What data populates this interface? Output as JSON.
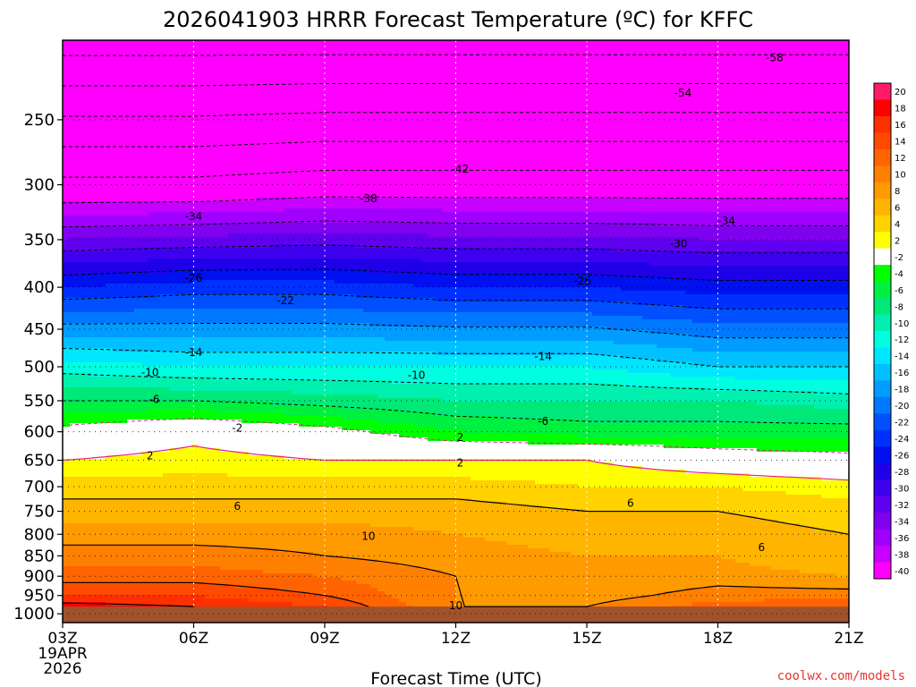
{
  "chart_data": {
    "type": "heatmap",
    "title": "2026041903 HRRR Forecast Temperature (ºC) for KFFC",
    "xlabel": "Forecast Time (UTC)",
    "ylabel": "",
    "x_hours": [
      0,
      3,
      6,
      9,
      12,
      15,
      18
    ],
    "x_ticks": [
      "03Z",
      "06Z",
      "09Z",
      "12Z",
      "15Z",
      "18Z",
      "21Z"
    ],
    "x_start_date": [
      "19APR",
      "2026"
    ],
    "xlim": [
      0,
      18
    ],
    "y_ticks": [
      250,
      300,
      350,
      400,
      450,
      500,
      550,
      600,
      650,
      700,
      750,
      800,
      850,
      900,
      950,
      1000
    ],
    "ylim_hPa": [
      200,
      1025
    ],
    "y_axis": "pressure",
    "surface_pressure_hPa": 980,
    "colorbar": {
      "levels": [
        20,
        18,
        16,
        14,
        12,
        10,
        8,
        6,
        4,
        2,
        -2,
        -4,
        -6,
        -8,
        -10,
        -12,
        -14,
        -16,
        -18,
        -20,
        -22,
        -24,
        -26,
        -28,
        -30,
        -32,
        -34,
        -36,
        -38,
        -40
      ],
      "colors": [
        "#ff1a6a",
        "#ff0000",
        "#ff3000",
        "#ff4a00",
        "#ff6400",
        "#ff8000",
        "#ff9a00",
        "#ffb400",
        "#ffd200",
        "#ffff00",
        "#ffffff",
        "#00ff00",
        "#00f040",
        "#00e878",
        "#00f0b0",
        "#00ffe0",
        "#00e6ff",
        "#00c0ff",
        "#009cff",
        "#0078ff",
        "#0050ff",
        "#0030ff",
        "#0010f0",
        "#2000e8",
        "#4000f0",
        "#6000f0",
        "#8000f0",
        "#a000ff",
        "#c800ff",
        "#ff00ff"
      ]
    },
    "temperature_profiles": [
      {
        "hour": 0,
        "p_hPa": [
          200,
          300,
          400,
          500,
          550,
          600,
          650,
          700,
          750,
          800,
          850,
          900,
          950,
          980
        ],
        "t_C": [
          -60,
          -41,
          -24,
          -11,
          -6,
          -1,
          2,
          5,
          7,
          9,
          11,
          13,
          16,
          19
        ]
      },
      {
        "hour": 3,
        "p_hPa": [
          200,
          300,
          400,
          500,
          550,
          600,
          650,
          700,
          750,
          800,
          850,
          900,
          950,
          980
        ],
        "t_C": [
          -60,
          -41,
          -23,
          -12,
          -6,
          1,
          3,
          5,
          7,
          9,
          11,
          13,
          16,
          18
        ]
      },
      {
        "hour": 6,
        "p_hPa": [
          200,
          300,
          400,
          500,
          550,
          600,
          650,
          700,
          750,
          800,
          850,
          900,
          950,
          980
        ],
        "t_C": [
          -60,
          -40,
          -23,
          -12,
          -7,
          -1,
          2,
          5,
          7,
          9,
          10,
          12,
          14,
          16
        ]
      },
      {
        "hour": 9,
        "p_hPa": [
          200,
          300,
          400,
          500,
          550,
          600,
          650,
          700,
          750,
          800,
          850,
          900,
          950,
          980
        ],
        "t_C": [
          -60,
          -40,
          -24,
          -12,
          -8,
          -4,
          2,
          5,
          7,
          8,
          9,
          10,
          10,
          10
        ]
      },
      {
        "hour": 12,
        "p_hPa": [
          200,
          300,
          400,
          500,
          550,
          600,
          650,
          700,
          750,
          800,
          850,
          900,
          950,
          980
        ],
        "t_C": [
          -60,
          -40,
          -24,
          -12,
          -8,
          -5,
          2,
          4,
          6,
          7,
          8,
          8,
          9,
          10
        ]
      },
      {
        "hour": 15,
        "p_hPa": [
          200,
          300,
          400,
          500,
          550,
          600,
          650,
          700,
          750,
          800,
          850,
          900,
          950,
          980
        ],
        "t_C": [
          -60,
          -40,
          -25,
          -14,
          -8,
          -5,
          0,
          4,
          6,
          7,
          8,
          9,
          11,
          13
        ]
      },
      {
        "hour": 18,
        "p_hPa": [
          200,
          300,
          400,
          500,
          550,
          600,
          650,
          700,
          750,
          800,
          850,
          900,
          950,
          980
        ],
        "t_C": [
          -60,
          -40,
          -25,
          -14,
          -9,
          -5,
          -1,
          3,
          5,
          6,
          6,
          8,
          11,
          14
        ]
      }
    ],
    "contour_levels": [
      -58,
      -54,
      -50,
      -46,
      -42,
      -38,
      -34,
      -30,
      -26,
      -22,
      -18,
      -14,
      -10,
      -6,
      -2,
      2,
      6,
      10,
      14,
      18
    ],
    "contour_labels": [
      {
        "text": "-58",
        "hour": 16.3,
        "p": 210
      },
      {
        "text": "-54",
        "hour": 14.2,
        "p": 232
      },
      {
        "text": "-42",
        "hour": 9.1,
        "p": 287
      },
      {
        "text": "-38",
        "hour": 7.0,
        "p": 312
      },
      {
        "text": "-34",
        "hour": 3.0,
        "p": 328
      },
      {
        "text": "-34",
        "hour": 15.2,
        "p": 332
      },
      {
        "text": "-30",
        "hour": 14.1,
        "p": 354
      },
      {
        "text": "-26",
        "hour": 3.0,
        "p": 390
      },
      {
        "text": "-26",
        "hour": 11.9,
        "p": 393
      },
      {
        "text": "-22",
        "hour": 5.1,
        "p": 415
      },
      {
        "text": "-14",
        "hour": 3.0,
        "p": 480
      },
      {
        "text": "-14",
        "hour": 11.0,
        "p": 486
      },
      {
        "text": "-10",
        "hour": 2.0,
        "p": 508
      },
      {
        "text": "-10",
        "hour": 8.1,
        "p": 512
      },
      {
        "text": "-6",
        "hour": 2.1,
        "p": 548
      },
      {
        "text": "-6",
        "hour": 11.0,
        "p": 583
      },
      {
        "text": "-2",
        "hour": 4.0,
        "p": 594
      },
      {
        "text": "2",
        "hour": 9.1,
        "p": 610
      },
      {
        "text": "2",
        "hour": 2.0,
        "p": 642
      },
      {
        "text": "2",
        "hour": 9.1,
        "p": 655
      },
      {
        "text": "6",
        "hour": 4.0,
        "p": 740
      },
      {
        "text": "6",
        "hour": 13.0,
        "p": 733
      },
      {
        "text": "6",
        "hour": 16.0,
        "p": 830
      },
      {
        "text": "10",
        "hour": 7.0,
        "p": 805
      },
      {
        "text": "10",
        "hour": 9.0,
        "p": 977
      }
    ]
  },
  "footer": {
    "credit": "coolwx.com/models"
  }
}
